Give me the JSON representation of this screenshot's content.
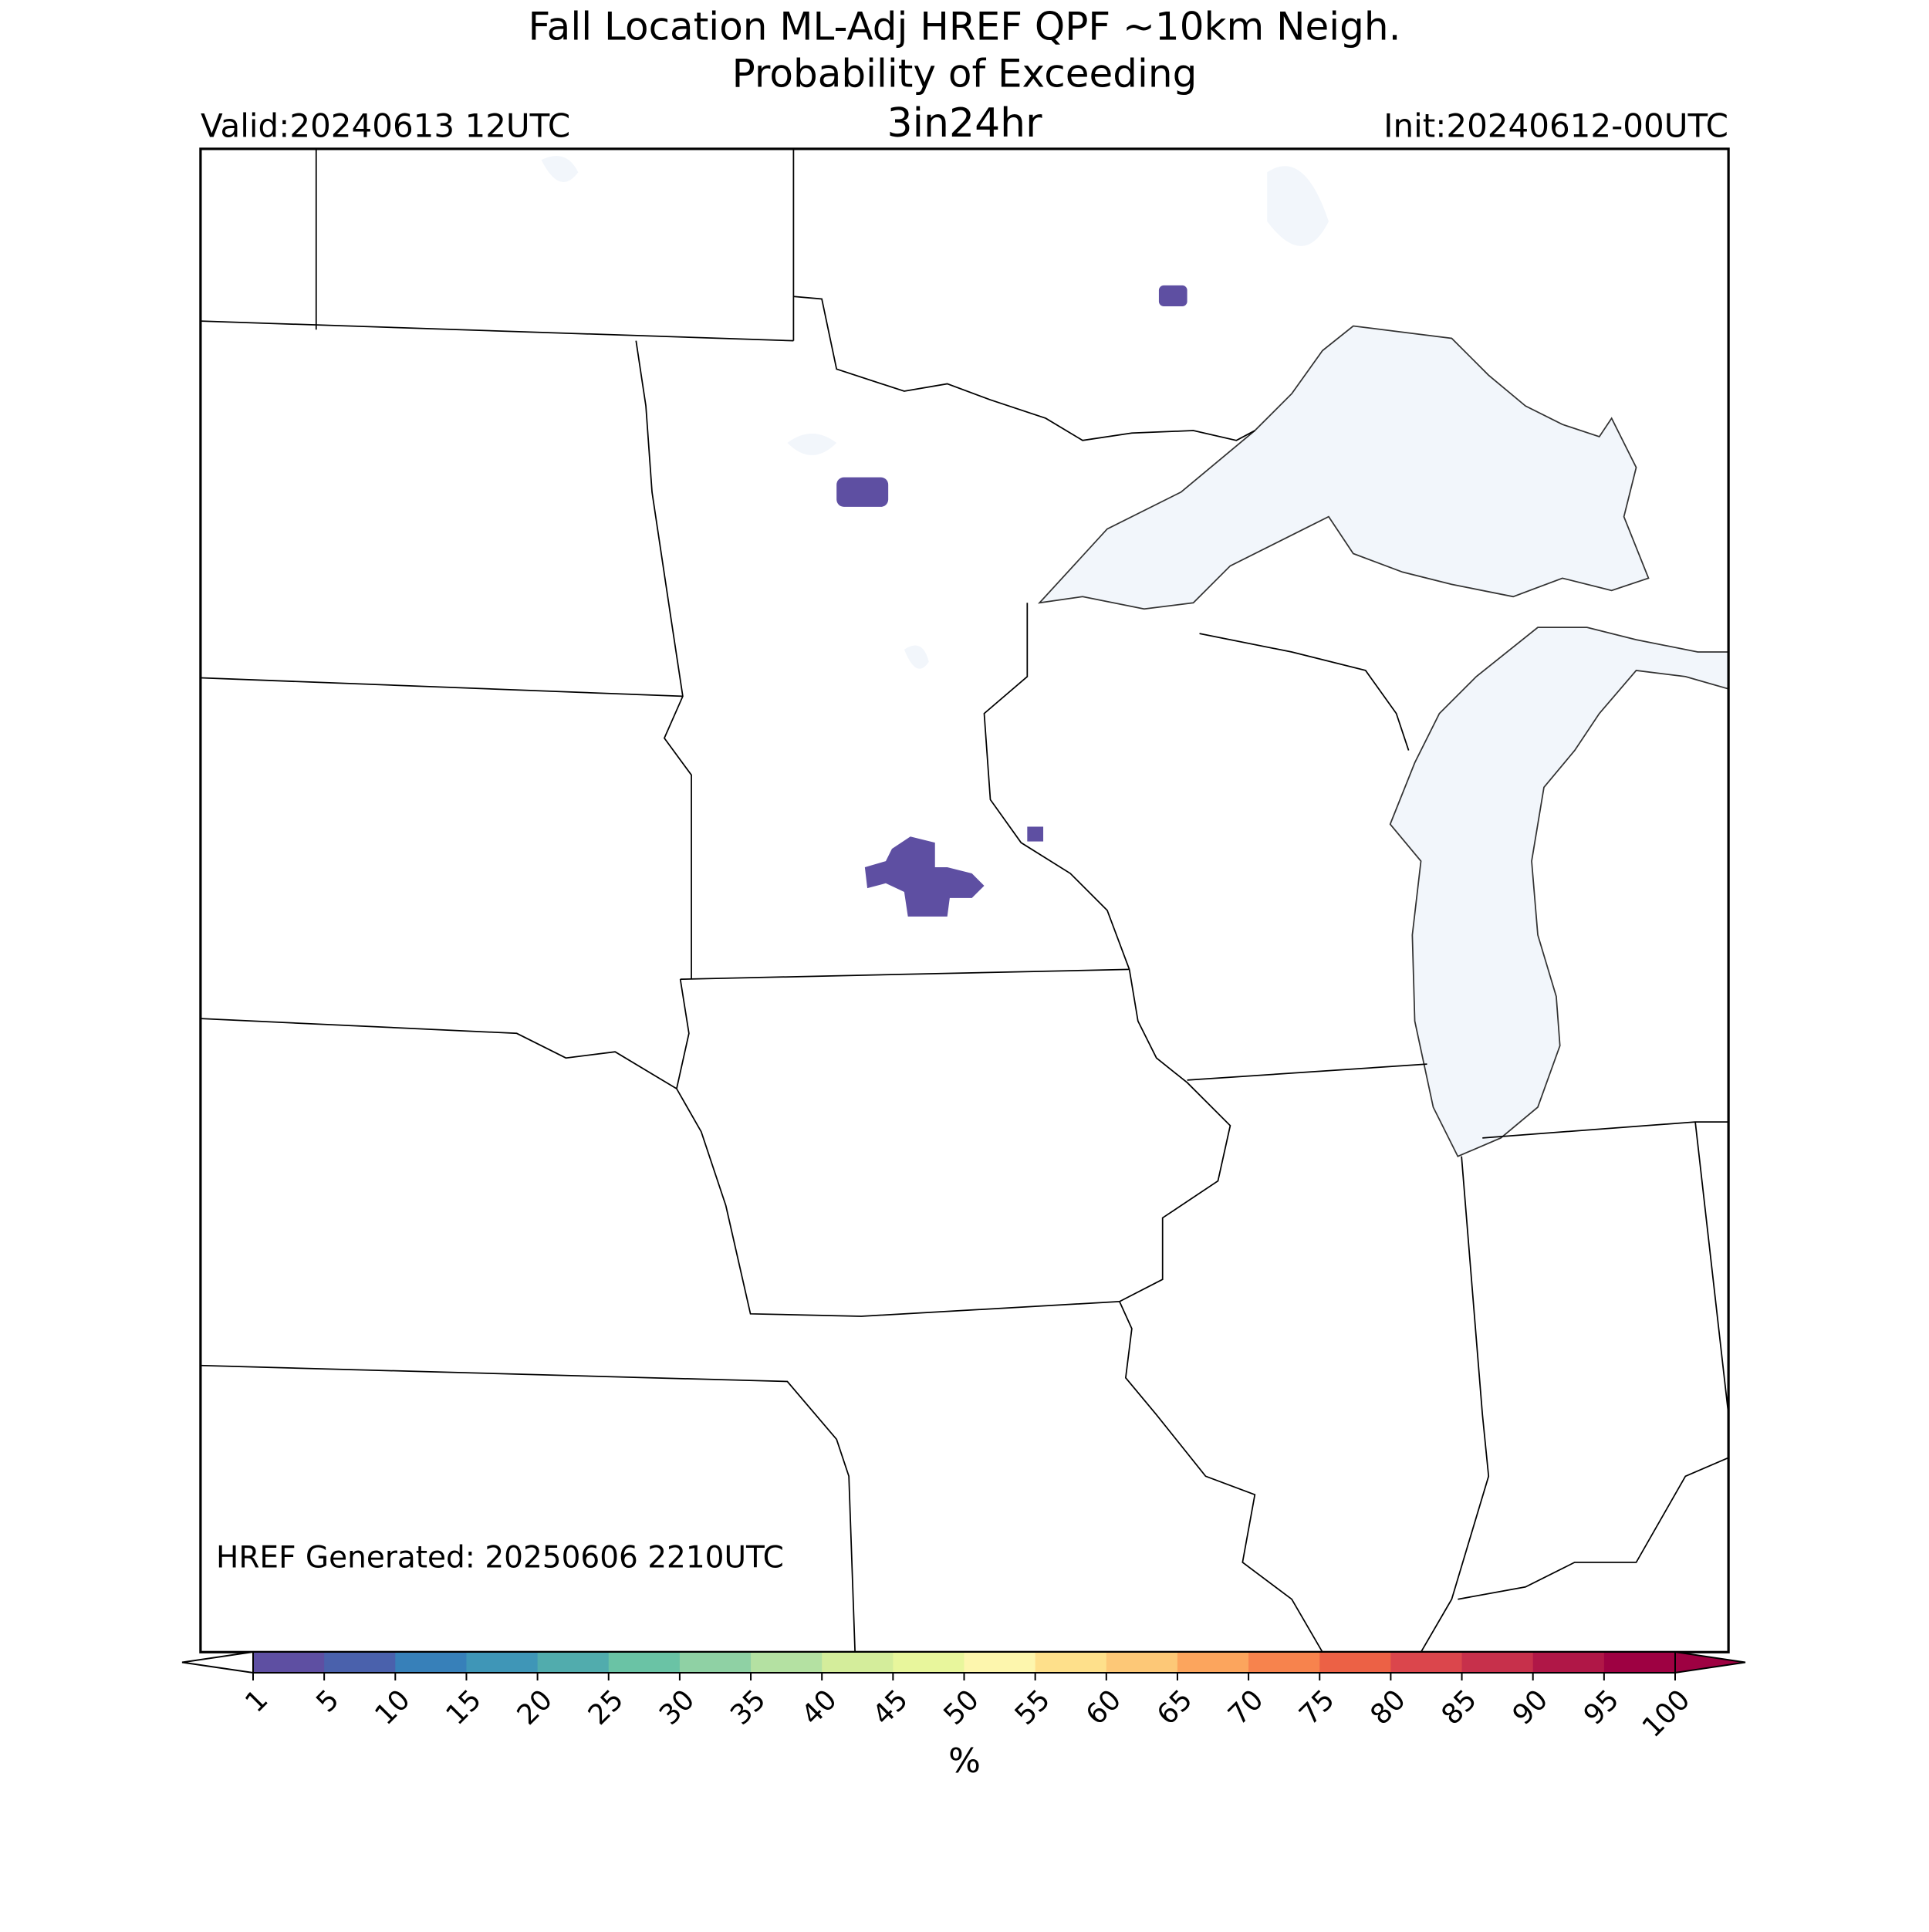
{
  "header": {
    "title": "Fall Location ML-Adj HREF QPF ~10km Neigh.",
    "subtitle": "Probability of Exceeding",
    "threshold": "3in24hr",
    "valid": "Valid:20240613 12UTC",
    "init": "Init:20240612-00UTC"
  },
  "note": "HREF Generated: 20250606 2210UTC",
  "colorbar": {
    "ticks": [
      1,
      5,
      10,
      15,
      20,
      25,
      30,
      35,
      40,
      45,
      50,
      55,
      60,
      65,
      70,
      75,
      80,
      85,
      90,
      95,
      100
    ],
    "colors": [
      "#5e4fa2",
      "#4a61ac",
      "#3780b9",
      "#3f96b7",
      "#51acad",
      "#6ac3a5",
      "#8fd1a4",
      "#b4e1a2",
      "#d4ed9b",
      "#e8f69c",
      "#fdf6ad",
      "#fee08b",
      "#fdc877",
      "#fca55d",
      "#f7834d",
      "#ec6145",
      "#db464c",
      "#c7304b",
      "#b01747",
      "#9e0142"
    ],
    "label": "%"
  }
}
